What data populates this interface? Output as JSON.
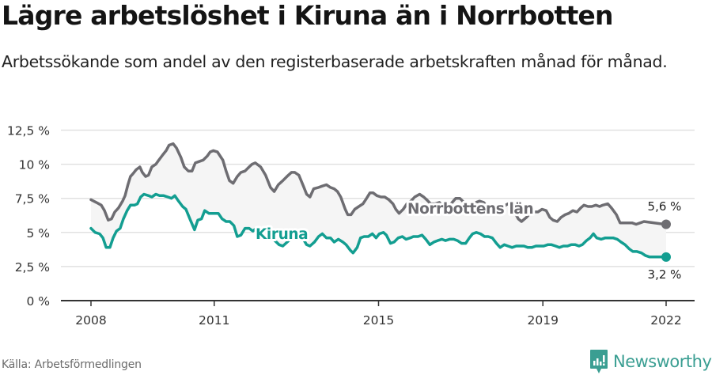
{
  "header": {
    "title": "Lägre arbetslöshet i Kiruna än i Norrbotten",
    "subtitle": "Arbetssökande som andel av den registerbaserade arbetskraften månad för månad."
  },
  "footer": {
    "source": "Källa: Arbetsförmedlingen",
    "brand": "Newsworthy",
    "brand_icon": "bar-chart-speech-bubble-icon"
  },
  "colors": {
    "norrbotten": "#6e6d72",
    "kiruna": "#139e91",
    "band_fill": "#f5f5f5",
    "gridline": "#e1e1e1",
    "axis": "#333333",
    "brand": "#3a9e92"
  },
  "chart_data": {
    "type": "line",
    "title": "Lägre arbetslöshet i Kiruna än i Norrbotten",
    "subtitle": "Arbetssökande som andel av den registerbaserade arbetskraften månad för månad.",
    "xlabel": "",
    "ylabel": "",
    "ylim": [
      0,
      12.5
    ],
    "xlim": [
      2008,
      2022.0
    ],
    "y_ticks": [
      "0 %",
      "2,5 %",
      "5 %",
      "7,5 %",
      "10 %",
      "12,5 %"
    ],
    "y_tick_values": [
      0,
      2.5,
      5,
      7.5,
      10,
      12.5
    ],
    "x_ticks": [
      "2008",
      "2011",
      "2015",
      "2019",
      "2022"
    ],
    "x_tick_values": [
      2008,
      2011,
      2015,
      2019,
      2022
    ],
    "grid": true,
    "legend": "inline labels",
    "annotations": [
      {
        "series": "Norrbottens län",
        "text": "5,6 %",
        "value": 5.6
      },
      {
        "series": "Kiruna",
        "text": "3,2 %",
        "value": 3.2
      }
    ],
    "series": [
      {
        "name": "Norrbottens län",
        "label": "Norrbottens län",
        "end_label": "5,6 %",
        "points": [
          [
            2008.0,
            7.4
          ],
          [
            2008.13,
            7.2
          ],
          [
            2008.25,
            7.0
          ],
          [
            2008.33,
            6.6
          ],
          [
            2008.42,
            5.9
          ],
          [
            2008.5,
            6.0
          ],
          [
            2008.58,
            6.5
          ],
          [
            2008.67,
            6.8
          ],
          [
            2008.77,
            7.3
          ],
          [
            2008.83,
            7.7
          ],
          [
            2008.9,
            8.5
          ],
          [
            2008.96,
            9.1
          ],
          [
            2009.02,
            9.3
          ],
          [
            2009.1,
            9.6
          ],
          [
            2009.19,
            9.8
          ],
          [
            2009.25,
            9.4
          ],
          [
            2009.33,
            9.1
          ],
          [
            2009.4,
            9.2
          ],
          [
            2009.48,
            9.8
          ],
          [
            2009.58,
            10.0
          ],
          [
            2009.65,
            10.3
          ],
          [
            2009.75,
            10.7
          ],
          [
            2009.83,
            11.0
          ],
          [
            2009.9,
            11.4
          ],
          [
            2010.0,
            11.5
          ],
          [
            2010.08,
            11.2
          ],
          [
            2010.19,
            10.5
          ],
          [
            2010.27,
            9.8
          ],
          [
            2010.37,
            9.5
          ],
          [
            2010.46,
            9.5
          ],
          [
            2010.54,
            10.1
          ],
          [
            2010.63,
            10.2
          ],
          [
            2010.73,
            10.3
          ],
          [
            2010.83,
            10.6
          ],
          [
            2010.9,
            10.9
          ],
          [
            2010.98,
            11.0
          ],
          [
            2011.08,
            10.9
          ],
          [
            2011.21,
            10.3
          ],
          [
            2011.29,
            9.5
          ],
          [
            2011.37,
            8.8
          ],
          [
            2011.46,
            8.6
          ],
          [
            2011.56,
            9.1
          ],
          [
            2011.65,
            9.4
          ],
          [
            2011.75,
            9.5
          ],
          [
            2011.85,
            9.8
          ],
          [
            2011.92,
            10.0
          ],
          [
            2012.0,
            10.1
          ],
          [
            2012.13,
            9.8
          ],
          [
            2012.25,
            9.2
          ],
          [
            2012.37,
            8.3
          ],
          [
            2012.46,
            8.0
          ],
          [
            2012.56,
            8.5
          ],
          [
            2012.67,
            8.8
          ],
          [
            2012.77,
            9.1
          ],
          [
            2012.88,
            9.4
          ],
          [
            2012.96,
            9.4
          ],
          [
            2013.06,
            9.2
          ],
          [
            2013.17,
            8.4
          ],
          [
            2013.25,
            7.8
          ],
          [
            2013.33,
            7.6
          ],
          [
            2013.42,
            8.2
          ],
          [
            2013.54,
            8.3
          ],
          [
            2013.63,
            8.4
          ],
          [
            2013.73,
            8.5
          ],
          [
            2013.83,
            8.3
          ],
          [
            2013.92,
            8.2
          ],
          [
            2014.0,
            8.0
          ],
          [
            2014.08,
            7.6
          ],
          [
            2014.19,
            6.7
          ],
          [
            2014.25,
            6.3
          ],
          [
            2014.33,
            6.3
          ],
          [
            2014.42,
            6.7
          ],
          [
            2014.52,
            6.9
          ],
          [
            2014.62,
            7.1
          ],
          [
            2014.71,
            7.5
          ],
          [
            2014.79,
            7.9
          ],
          [
            2014.87,
            7.9
          ],
          [
            2014.96,
            7.7
          ],
          [
            2015.06,
            7.6
          ],
          [
            2015.15,
            7.6
          ],
          [
            2015.25,
            7.4
          ],
          [
            2015.35,
            7.1
          ],
          [
            2015.42,
            6.7
          ],
          [
            2015.5,
            6.4
          ],
          [
            2015.6,
            6.7
          ],
          [
            2015.69,
            7.1
          ],
          [
            2015.79,
            7.3
          ],
          [
            2015.88,
            7.6
          ],
          [
            2016.0,
            7.8
          ],
          [
            2016.1,
            7.6
          ],
          [
            2016.17,
            7.4
          ],
          [
            2016.27,
            7.1
          ],
          [
            2016.37,
            7.1
          ],
          [
            2016.48,
            7.2
          ],
          [
            2016.58,
            6.9
          ],
          [
            2016.67,
            6.8
          ],
          [
            2016.79,
            7.2
          ],
          [
            2016.88,
            7.5
          ],
          [
            2016.98,
            7.5
          ],
          [
            2017.08,
            7.2
          ],
          [
            2017.17,
            6.9
          ],
          [
            2017.27,
            7.0
          ],
          [
            2017.37,
            7.2
          ],
          [
            2017.46,
            7.3
          ],
          [
            2017.56,
            7.2
          ],
          [
            2017.65,
            6.9
          ],
          [
            2017.75,
            6.6
          ],
          [
            2017.85,
            6.7
          ],
          [
            2017.94,
            6.8
          ],
          [
            2018.04,
            6.9
          ],
          [
            2018.15,
            7.1
          ],
          [
            2018.23,
            6.9
          ],
          [
            2018.33,
            6.4
          ],
          [
            2018.4,
            6.0
          ],
          [
            2018.48,
            5.8
          ],
          [
            2018.6,
            6.1
          ],
          [
            2018.69,
            6.4
          ],
          [
            2018.79,
            6.5
          ],
          [
            2018.88,
            6.5
          ],
          [
            2018.98,
            6.7
          ],
          [
            2019.08,
            6.6
          ],
          [
            2019.17,
            6.1
          ],
          [
            2019.25,
            5.9
          ],
          [
            2019.35,
            5.8
          ],
          [
            2019.44,
            6.1
          ],
          [
            2019.54,
            6.3
          ],
          [
            2019.63,
            6.4
          ],
          [
            2019.73,
            6.6
          ],
          [
            2019.83,
            6.5
          ],
          [
            2019.92,
            6.8
          ],
          [
            2020.0,
            7.0
          ],
          [
            2020.1,
            6.9
          ],
          [
            2020.19,
            6.9
          ],
          [
            2020.29,
            7.0
          ],
          [
            2020.38,
            6.9
          ],
          [
            2020.46,
            7.0
          ],
          [
            2020.58,
            7.1
          ],
          [
            2020.67,
            6.8
          ],
          [
            2020.79,
            6.3
          ],
          [
            2020.88,
            5.7
          ],
          [
            2020.98,
            5.7
          ],
          [
            2021.08,
            5.7
          ],
          [
            2021.17,
            5.7
          ],
          [
            2021.27,
            5.6
          ],
          [
            2021.37,
            5.7
          ],
          [
            2021.46,
            5.8
          ],
          [
            2021.96,
            5.6
          ],
          [
            2022.0,
            5.6
          ]
        ]
      },
      {
        "name": "Kiruna",
        "label": "Kiruna",
        "end_label": "3,2 %",
        "points": [
          [
            2008.0,
            5.3
          ],
          [
            2008.1,
            5.0
          ],
          [
            2008.21,
            4.9
          ],
          [
            2008.29,
            4.6
          ],
          [
            2008.37,
            3.9
          ],
          [
            2008.46,
            3.9
          ],
          [
            2008.54,
            4.6
          ],
          [
            2008.62,
            5.1
          ],
          [
            2008.71,
            5.3
          ],
          [
            2008.79,
            6.0
          ],
          [
            2008.88,
            6.6
          ],
          [
            2008.96,
            7.0
          ],
          [
            2009.06,
            7.0
          ],
          [
            2009.13,
            7.1
          ],
          [
            2009.21,
            7.6
          ],
          [
            2009.29,
            7.8
          ],
          [
            2009.4,
            7.7
          ],
          [
            2009.48,
            7.6
          ],
          [
            2009.58,
            7.8
          ],
          [
            2009.67,
            7.7
          ],
          [
            2009.77,
            7.7
          ],
          [
            2009.87,
            7.6
          ],
          [
            2009.96,
            7.5
          ],
          [
            2010.04,
            7.7
          ],
          [
            2010.13,
            7.3
          ],
          [
            2010.23,
            6.9
          ],
          [
            2010.31,
            6.7
          ],
          [
            2010.42,
            5.9
          ],
          [
            2010.52,
            5.2
          ],
          [
            2010.6,
            5.9
          ],
          [
            2010.69,
            6.0
          ],
          [
            2010.77,
            6.6
          ],
          [
            2010.87,
            6.4
          ],
          [
            2011.0,
            6.4
          ],
          [
            2011.1,
            6.4
          ],
          [
            2011.19,
            6.0
          ],
          [
            2011.29,
            5.8
          ],
          [
            2011.38,
            5.8
          ],
          [
            2011.48,
            5.5
          ],
          [
            2011.56,
            4.7
          ],
          [
            2011.65,
            4.8
          ],
          [
            2011.75,
            5.3
          ],
          [
            2011.85,
            5.3
          ],
          [
            2011.94,
            5.1
          ],
          [
            2012.02,
            5.3
          ],
          [
            2012.12,
            5.3
          ],
          [
            2012.2,
            5.2
          ],
          [
            2012.58,
            4.1
          ],
          [
            2012.67,
            4.0
          ],
          [
            2013.0,
            4.9
          ],
          [
            2013.13,
            4.7
          ],
          [
            2013.25,
            4.1
          ],
          [
            2013.33,
            4.0
          ],
          [
            2013.44,
            4.3
          ],
          [
            2013.54,
            4.7
          ],
          [
            2013.63,
            4.9
          ],
          [
            2013.73,
            4.6
          ],
          [
            2013.83,
            4.6
          ],
          [
            2013.92,
            4.3
          ],
          [
            2014.02,
            4.5
          ],
          [
            2014.13,
            4.3
          ],
          [
            2014.21,
            4.1
          ],
          [
            2014.31,
            3.7
          ],
          [
            2014.38,
            3.5
          ],
          [
            2014.48,
            3.9
          ],
          [
            2014.56,
            4.6
          ],
          [
            2014.65,
            4.7
          ],
          [
            2014.75,
            4.7
          ],
          [
            2014.85,
            4.9
          ],
          [
            2014.94,
            4.6
          ],
          [
            2015.02,
            4.9
          ],
          [
            2015.12,
            5.0
          ],
          [
            2015.19,
            4.8
          ],
          [
            2015.29,
            4.2
          ],
          [
            2015.38,
            4.3
          ],
          [
            2015.48,
            4.6
          ],
          [
            2015.58,
            4.7
          ],
          [
            2015.67,
            4.5
          ],
          [
            2015.77,
            4.6
          ],
          [
            2015.85,
            4.7
          ],
          [
            2015.96,
            4.7
          ],
          [
            2016.06,
            4.8
          ],
          [
            2016.15,
            4.5
          ],
          [
            2016.25,
            4.1
          ],
          [
            2016.35,
            4.3
          ],
          [
            2016.44,
            4.4
          ],
          [
            2016.54,
            4.5
          ],
          [
            2016.63,
            4.4
          ],
          [
            2016.73,
            4.5
          ],
          [
            2016.83,
            4.5
          ],
          [
            2016.92,
            4.4
          ],
          [
            2017.02,
            4.2
          ],
          [
            2017.12,
            4.2
          ],
          [
            2017.21,
            4.6
          ],
          [
            2017.29,
            4.9
          ],
          [
            2017.38,
            5.0
          ],
          [
            2017.48,
            4.9
          ],
          [
            2017.58,
            4.7
          ],
          [
            2017.67,
            4.7
          ],
          [
            2017.77,
            4.6
          ],
          [
            2017.87,
            4.2
          ],
          [
            2017.96,
            3.9
          ],
          [
            2018.06,
            4.1
          ],
          [
            2018.15,
            4.0
          ],
          [
            2018.25,
            3.9
          ],
          [
            2018.35,
            4.0
          ],
          [
            2018.44,
            4.0
          ],
          [
            2018.54,
            4.0
          ],
          [
            2018.63,
            3.9
          ],
          [
            2018.73,
            3.9
          ],
          [
            2018.83,
            4.0
          ],
          [
            2018.92,
            4.0
          ],
          [
            2019.02,
            4.0
          ],
          [
            2019.12,
            4.1
          ],
          [
            2019.21,
            4.1
          ],
          [
            2019.31,
            4.0
          ],
          [
            2019.4,
            3.9
          ],
          [
            2019.5,
            4.0
          ],
          [
            2019.6,
            4.0
          ],
          [
            2019.69,
            4.1
          ],
          [
            2019.79,
            4.1
          ],
          [
            2019.88,
            4.0
          ],
          [
            2019.96,
            4.1
          ],
          [
            2020.06,
            4.4
          ],
          [
            2020.15,
            4.6
          ],
          [
            2020.23,
            4.9
          ],
          [
            2020.31,
            4.6
          ],
          [
            2020.42,
            4.5
          ],
          [
            2020.52,
            4.6
          ],
          [
            2020.62,
            4.6
          ],
          [
            2020.71,
            4.6
          ],
          [
            2020.81,
            4.5
          ],
          [
            2020.9,
            4.3
          ],
          [
            2021.0,
            4.1
          ],
          [
            2021.1,
            3.8
          ],
          [
            2021.19,
            3.6
          ],
          [
            2021.29,
            3.6
          ],
          [
            2021.4,
            3.5
          ],
          [
            2021.5,
            3.3
          ],
          [
            2021.6,
            3.2
          ],
          [
            2022.0,
            3.2
          ]
        ]
      }
    ]
  }
}
